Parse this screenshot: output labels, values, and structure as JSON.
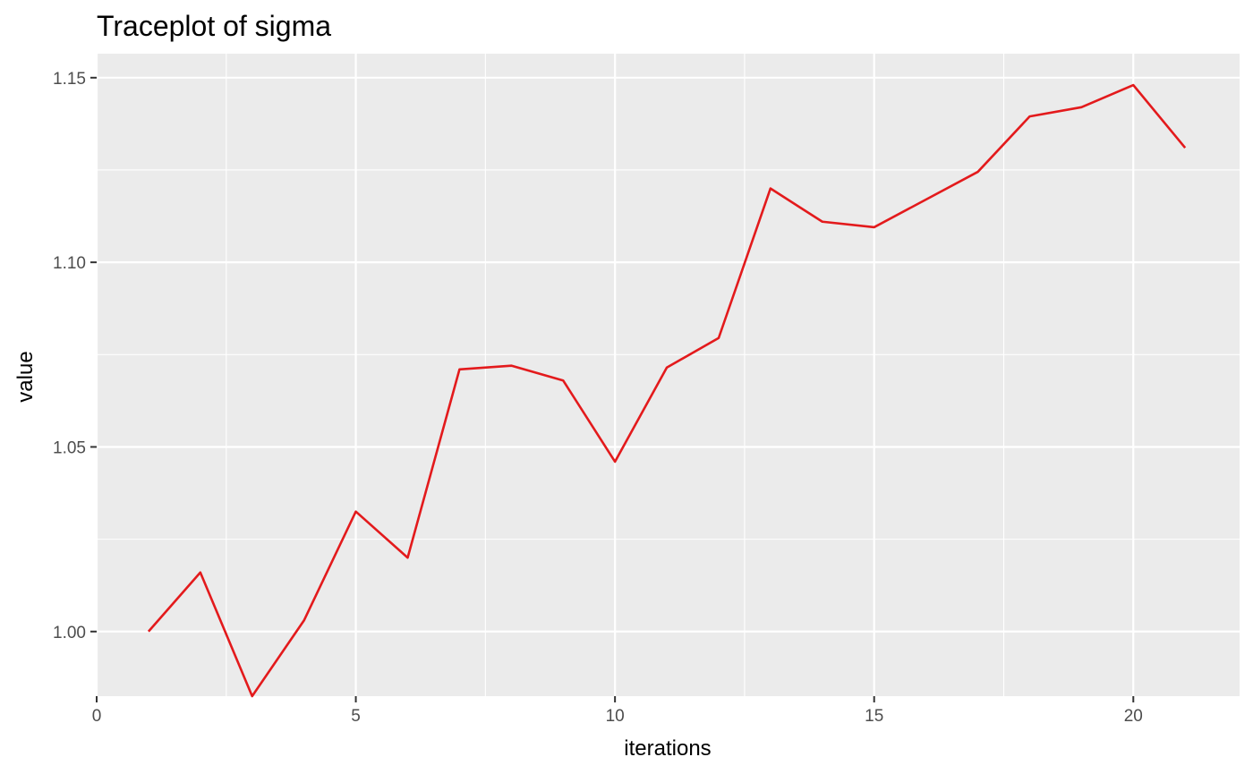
{
  "chart_data": {
    "type": "line",
    "title": "Traceplot of sigma",
    "xlabel": "iterations",
    "ylabel": "value",
    "xlim": [
      0,
      22.05
    ],
    "ylim": [
      0.9825,
      1.1565
    ],
    "x_ticks": [
      0,
      5,
      10,
      15,
      20
    ],
    "x_tick_labels": [
      "0",
      "5",
      "10",
      "15",
      "20"
    ],
    "y_ticks": [
      1.0,
      1.05,
      1.1,
      1.15
    ],
    "y_tick_labels": [
      "1.00",
      "1.05",
      "1.10",
      "1.15"
    ],
    "grid": true,
    "background": "#ebebeb",
    "legend": "none",
    "series": [
      {
        "color": "#e31a1c",
        "x": [
          1,
          2,
          3,
          4,
          5,
          6,
          7,
          8,
          9,
          10,
          11,
          12,
          13,
          14,
          15,
          16,
          17,
          18,
          19,
          20,
          21
        ],
        "values": [
          1.0,
          1.016,
          0.9825,
          1.003,
          1.0325,
          1.02,
          1.071,
          1.072,
          1.068,
          1.046,
          1.0715,
          1.0795,
          1.12,
          1.111,
          1.1095,
          1.117,
          1.1245,
          1.1395,
          1.142,
          1.148,
          1.131
        ]
      }
    ]
  }
}
